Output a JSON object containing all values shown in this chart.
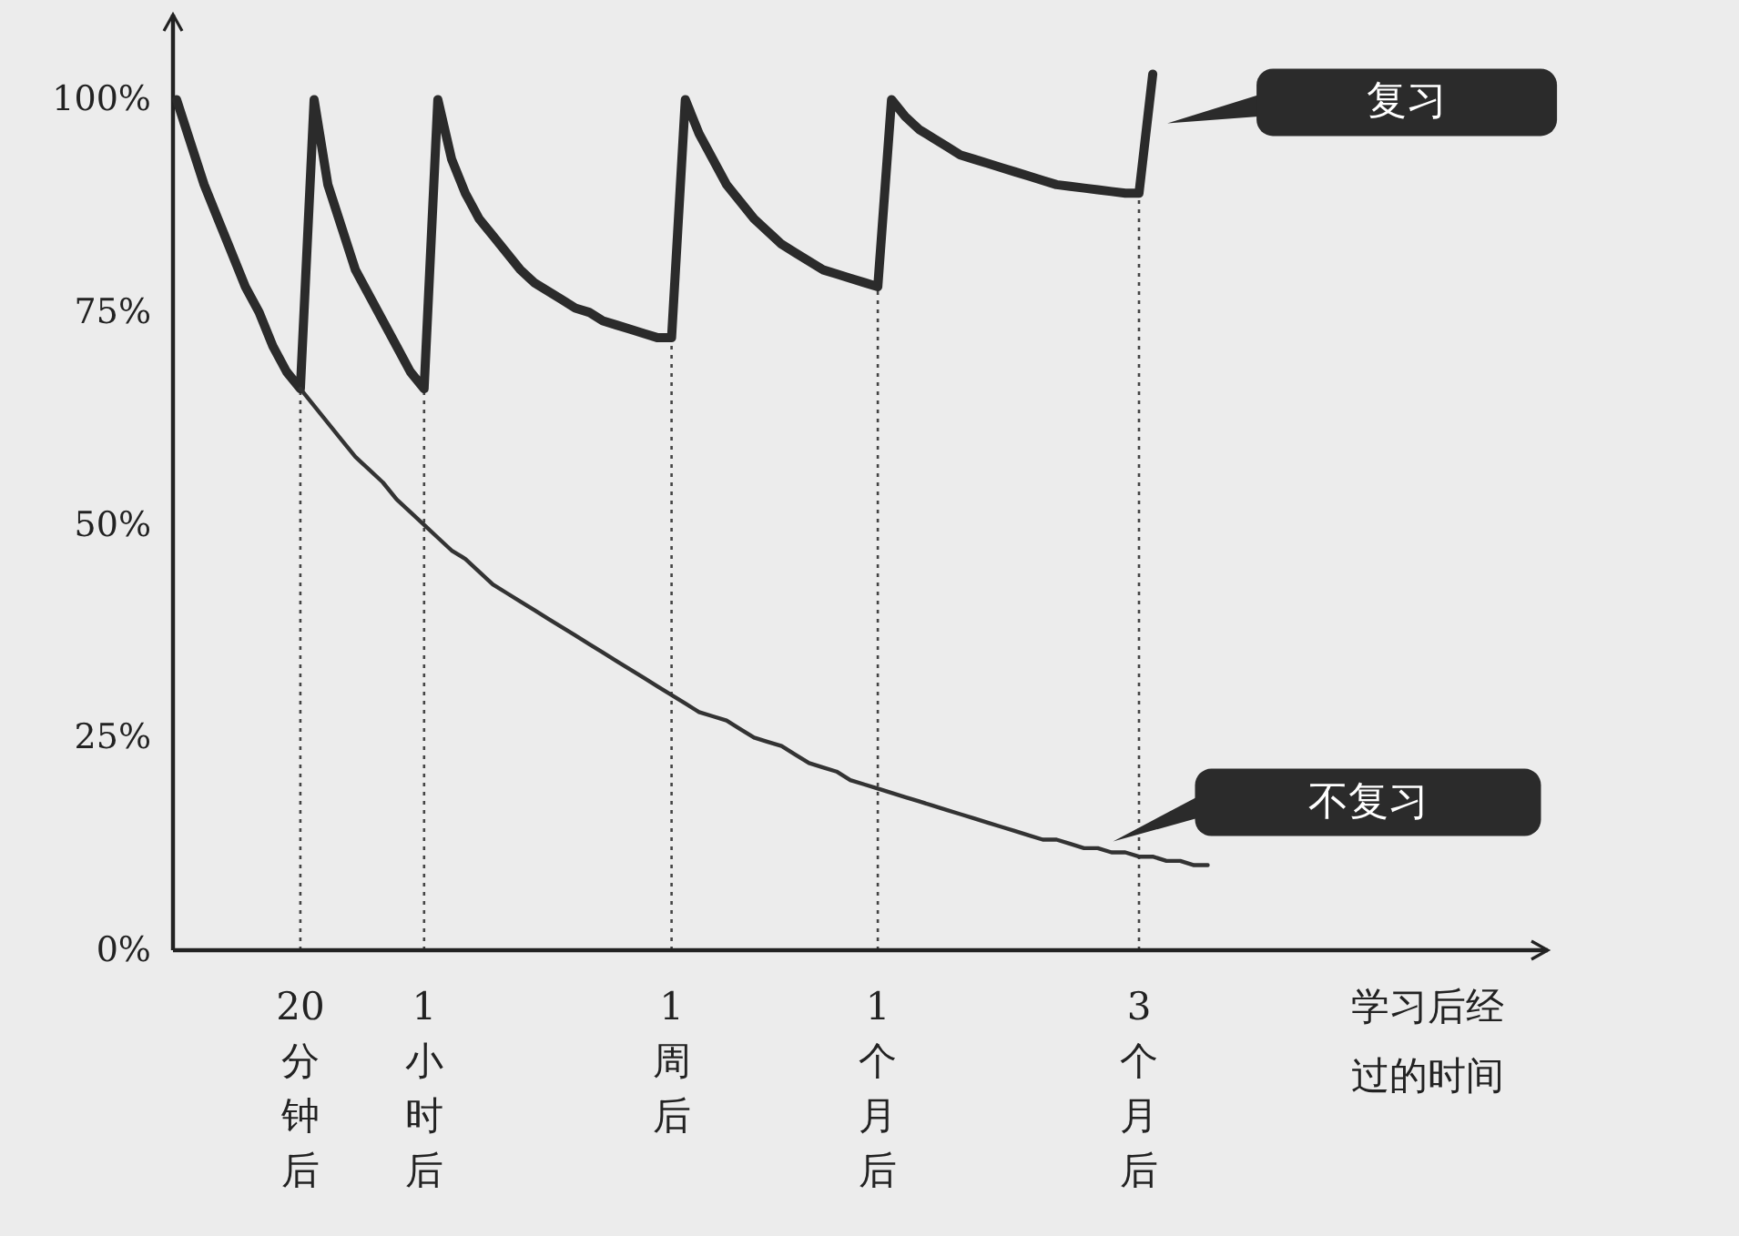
{
  "chart_data": {
    "type": "line",
    "xlabel": "学习后经过的时间",
    "categories": [
      null,
      null,
      null,
      null,
      null,
      null,
      null,
      null,
      null,
      "20分钟后",
      null,
      null,
      null,
      null,
      null,
      null,
      null,
      null,
      "1小时后",
      null,
      null,
      null,
      null,
      null,
      null,
      null,
      null,
      null,
      null,
      null,
      null,
      null,
      null,
      null,
      null,
      null,
      "1周后",
      null,
      null,
      null,
      null,
      null,
      null,
      null,
      null,
      null,
      null,
      null,
      null,
      null,
      null,
      "1个月后",
      null,
      null,
      null,
      null,
      null,
      null,
      null,
      null,
      null,
      null,
      null,
      null,
      null,
      null,
      null,
      null,
      null,
      null,
      "3个月后",
      null,
      null,
      null,
      null,
      null
    ],
    "ylim": [
      0,
      110
    ],
    "yticks": [
      {
        "value": 0,
        "label": "0%"
      },
      {
        "value": 25,
        "label": "25%"
      },
      {
        "value": 50,
        "label": "50%"
      },
      {
        "value": 75,
        "label": "75%"
      },
      {
        "value": 100,
        "label": "100%"
      }
    ],
    "series": [
      {
        "name": "复习",
        "color": "#2b2b2b",
        "values": [
          100,
          95,
          90,
          86,
          82,
          78,
          75,
          71,
          68,
          66,
          100,
          90,
          85,
          80,
          77,
          74,
          71,
          68,
          66,
          100,
          93,
          89,
          86,
          84,
          82,
          80,
          78.5,
          77.5,
          76.5,
          75.5,
          75,
          74,
          73.5,
          73,
          72.5,
          72,
          72,
          100,
          96,
          93,
          90,
          88,
          86,
          84.5,
          83,
          82,
          81,
          80,
          79.5,
          79,
          78.5,
          78,
          100,
          98,
          96.5,
          95.5,
          94.5,
          93.5,
          93,
          92.5,
          92,
          91.5,
          91,
          90.5,
          90,
          89.8,
          89.6,
          89.4,
          89.2,
          89,
          89,
          103,
          null,
          null,
          null,
          null
        ]
      },
      {
        "name": "不复习",
        "color": "#333333",
        "values": [
          null,
          null,
          null,
          null,
          null,
          null,
          null,
          null,
          null,
          66,
          64,
          62,
          60,
          58,
          56.5,
          55,
          53,
          51.5,
          50,
          48.5,
          47,
          46,
          44.5,
          43,
          42,
          41,
          40,
          39,
          38,
          37,
          36,
          35,
          34,
          33,
          32,
          31,
          30,
          29,
          28,
          27.5,
          27,
          26,
          25,
          24.5,
          24,
          23,
          22,
          21.5,
          21,
          20,
          19.5,
          19,
          18.5,
          18,
          17.5,
          17,
          16.5,
          16,
          15.5,
          15,
          14.5,
          14,
          13.5,
          13,
          13,
          12.5,
          12,
          12,
          11.5,
          11.5,
          11,
          11,
          10.5,
          10.5,
          10,
          10
        ]
      }
    ],
    "ref_lines": [
      {
        "axis": "x",
        "value": "20分钟后",
        "line_style": "dotted",
        "color": "#444444"
      },
      {
        "axis": "x",
        "value": "1小时后",
        "line_style": "dotted",
        "color": "#444444"
      },
      {
        "axis": "x",
        "value": "1周后",
        "line_style": "dotted",
        "color": "#444444"
      },
      {
        "axis": "x",
        "value": "1个月后",
        "line_style": "dotted",
        "color": "#444444"
      },
      {
        "axis": "x",
        "value": "3个月后",
        "line_style": "dotted",
        "color": "#444444"
      }
    ],
    "grid": false,
    "marker": "none",
    "line_style": "solid"
  }
}
